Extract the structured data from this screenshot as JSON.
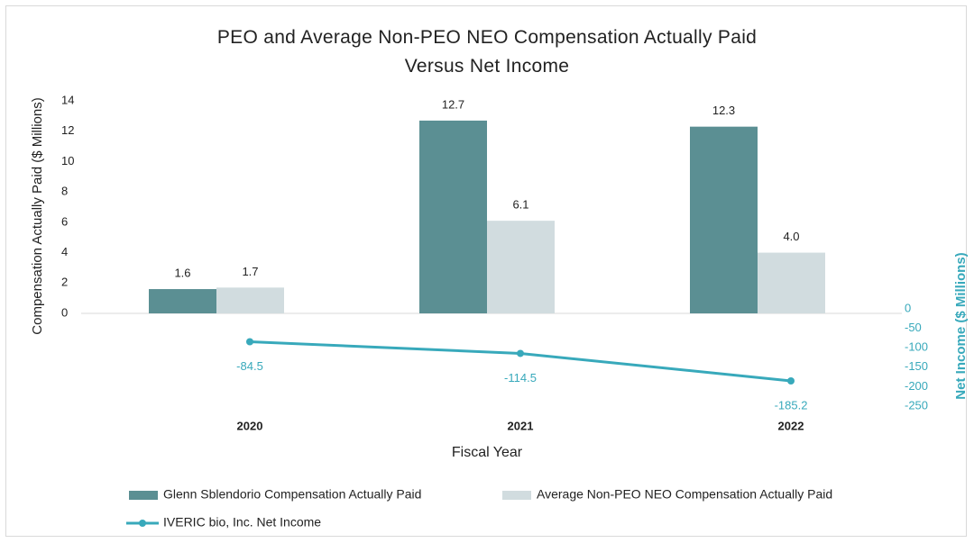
{
  "chart_data": {
    "type": "bar",
    "title": "PEO and Average Non-PEO NEO Compensation Actually Paid Versus Net Income",
    "x_label": "Fiscal Year",
    "y_label": "Compensation Actually Paid ($ Millions)",
    "y2_label": "Net Income ($ Millions)",
    "categories": [
      "2020",
      "2021",
      "2022"
    ],
    "series": [
      {
        "name": "Glenn Sblendorio Compensation Actually Paid",
        "type": "bar",
        "color": "#5b8f93",
        "values": [
          1.6,
          12.7,
          12.3
        ]
      },
      {
        "name": "Average Non-PEO NEO Compensation Actually Paid",
        "type": "bar",
        "color": "#d1dcdf",
        "values": [
          1.7,
          6.1,
          4.0
        ],
        "value_labels": [
          "1.7",
          "6.1",
          "4.0"
        ]
      },
      {
        "name": "IVERIC bio, Inc. Net Income",
        "type": "line",
        "axis": "y2",
        "color": "#38a9bb",
        "values": [
          -84.5,
          -114.5,
          -185.2
        ]
      }
    ],
    "ylim": [
      0,
      14
    ],
    "yticks": [
      0,
      2,
      4,
      6,
      8,
      10,
      12,
      14
    ],
    "y2lim": [
      -250,
      0
    ],
    "y2ticks": [
      0,
      -50,
      -100,
      -150,
      -200,
      -250
    ]
  }
}
